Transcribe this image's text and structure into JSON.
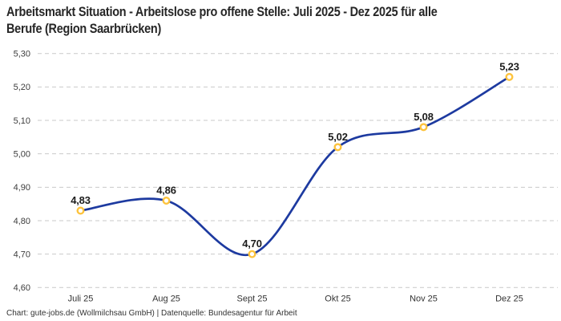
{
  "header": {
    "title_lines": [
      "Arbeitsmarkt Situation - Arbeitslose pro offene Stelle: Juli 2025 - Dez 2025 für alle",
      "Berufe (Region Saarbrücken)"
    ]
  },
  "footer": {
    "attribution": "Chart: gute-jobs.de (Wollmilchsau GmbH) | Datenquelle: Bundesagentur für Arbeit"
  },
  "chart_data": {
    "type": "line",
    "title": "Arbeitsmarkt Situation - Arbeitslose pro offene Stelle: Juli 2025 - Dez 2025 für alle Berufe (Region Saarbrücken)",
    "categories": [
      "Juli 25",
      "Aug 25",
      "Sept 25",
      "Okt 25",
      "Nov 25",
      "Dez 25"
    ],
    "series": [
      {
        "name": "Arbeitslose pro offene Stelle",
        "values": [
          4.83,
          4.86,
          4.7,
          5.02,
          5.08,
          5.23
        ],
        "point_labels": [
          "4,83",
          "4,86",
          "4,70",
          "5,02",
          "5,08",
          "5,23"
        ]
      }
    ],
    "xlabel": "",
    "ylabel": "",
    "ylim": [
      4.6,
      5.3
    ],
    "yticks": [
      {
        "value": 4.6,
        "label": "4,60"
      },
      {
        "value": 4.7,
        "label": "4,70"
      },
      {
        "value": 4.8,
        "label": "4,80"
      },
      {
        "value": 4.9,
        "label": "4,90"
      },
      {
        "value": 5.0,
        "label": "5,00"
      },
      {
        "value": 5.1,
        "label": "5,10"
      },
      {
        "value": 5.2,
        "label": "5,20"
      },
      {
        "value": 5.3,
        "label": "5,30"
      }
    ],
    "grid": "horizontal-dashed",
    "legend": "none",
    "curve": "smooth",
    "colors": {
      "line": "#1d3aa0",
      "marker_ring": "#fdc33d",
      "marker_fill": "#ffffff",
      "grid": "#c9c9c9"
    }
  }
}
